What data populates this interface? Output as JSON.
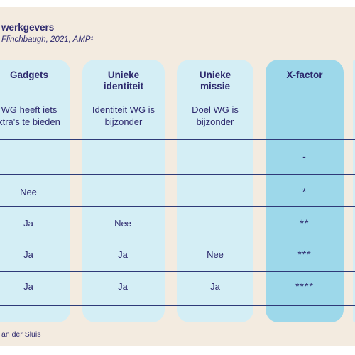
{
  "title": "werkgevers",
  "subtitle": "Flinchbaugh, 2021, AMP¹",
  "columns": [
    {
      "header": "Gadgets",
      "description": "WG heeft iets\nxtra's te bieden"
    },
    {
      "header": "Unieke\nidentiteit",
      "description": "Identiteit WG is\nbijzonder"
    },
    {
      "header": "Unieke\nmissie",
      "description": "Doel WG is\nbijzonder"
    },
    {
      "header": "X-factor",
      "description": ""
    }
  ],
  "rows": [
    [
      "",
      "",
      "",
      "-"
    ],
    [
      "Nee",
      "",
      "",
      "*"
    ],
    [
      "Ja",
      "Nee",
      "",
      "**"
    ],
    [
      "Ja",
      "Ja",
      "Nee",
      "***"
    ],
    [
      "Ja",
      "Ja",
      "Ja",
      "****"
    ]
  ],
  "footer": "an der Sluis",
  "colors": {
    "panel": "#f3ebe0",
    "column": "#d4eef5",
    "xfactor": "#9dd8ea",
    "text": "#2e2a6e",
    "rule": "#2e3a78"
  }
}
